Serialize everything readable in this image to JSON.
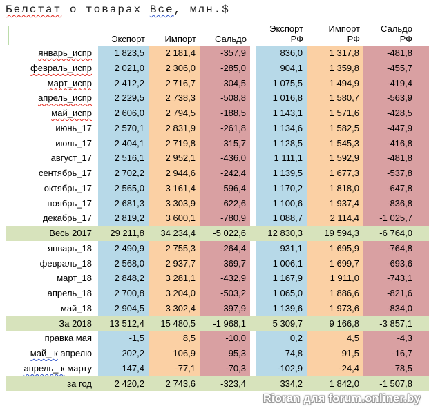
{
  "title": {
    "segments": [
      {
        "text": "Белстат",
        "wavy": "red"
      },
      {
        "text": " о товарах ",
        "wavy": null
      },
      {
        "text": "Все",
        "wavy": "blue"
      },
      {
        "text": ", млн.$",
        "wavy": null
      }
    ]
  },
  "colors": {
    "export_col": "#B7D9E8",
    "import_col": "#FBD0A4",
    "saldo_col": "#D9A0A2",
    "summary_row": "#D7E3BC",
    "wavy_red": "#e2261c",
    "wavy_blue": "#2f54c9",
    "watermark_text": "#ffffff"
  },
  "table": {
    "headers": [
      {
        "line1": "",
        "line2": "Экспорт"
      },
      {
        "line1": "",
        "line2": "Импорт"
      },
      {
        "line1": "",
        "line2": "Сальдо"
      },
      {
        "line1": "Экспорт",
        "line2": "РФ"
      },
      {
        "line1": "Импорт",
        "line2": "РФ"
      },
      {
        "line1": "Сальдо",
        "line2": "РФ"
      }
    ],
    "rows": [
      {
        "type": "month",
        "label_parts": [
          {
            "text": "январь_испр",
            "wavy": "red"
          }
        ],
        "values": [
          "1 823,5",
          "2 181,4",
          "-357,9",
          "836,0",
          "1 317,8",
          "-481,8"
        ]
      },
      {
        "type": "month",
        "label_parts": [
          {
            "text": "февраль_испр",
            "wavy": "red"
          }
        ],
        "values": [
          "2 021,0",
          "2 306,0",
          "-285,0",
          "904,1",
          "1 359,8",
          "-455,7"
        ]
      },
      {
        "type": "month",
        "label_parts": [
          {
            "text": "март_испр",
            "wavy": "red"
          }
        ],
        "values": [
          "2 412,2",
          "2 716,7",
          "-304,5",
          "1 075,5",
          "1 494,9",
          "-419,4"
        ]
      },
      {
        "type": "month",
        "label_parts": [
          {
            "text": "апрель_испр",
            "wavy": "red"
          }
        ],
        "values": [
          "2 229,5",
          "2 738,3",
          "-508,8",
          "1 016,8",
          "1 580,7",
          "-563,9"
        ]
      },
      {
        "type": "month",
        "label_parts": [
          {
            "text": "май_испр",
            "wavy": "red"
          }
        ],
        "values": [
          "2 606,0",
          "2 794,5",
          "-188,5",
          "1 143,1",
          "1 571,6",
          "-428,5"
        ]
      },
      {
        "type": "month",
        "label_parts": [
          {
            "text": "июнь_17",
            "wavy": null
          }
        ],
        "values": [
          "2 570,1",
          "2 831,9",
          "-261,8",
          "1 134,6",
          "1 582,5",
          "-447,9"
        ]
      },
      {
        "type": "month",
        "label_parts": [
          {
            "text": "июль_17",
            "wavy": null
          }
        ],
        "values": [
          "2 404,1",
          "2 719,8",
          "-315,7",
          "1 128,5",
          "1 545,3",
          "-416,8"
        ]
      },
      {
        "type": "month",
        "label_parts": [
          {
            "text": "август_17",
            "wavy": null
          }
        ],
        "values": [
          "2 516,1",
          "2 952,1",
          "-436,0",
          "1 111,1",
          "1 592,9",
          "-481,8"
        ]
      },
      {
        "type": "month",
        "label_parts": [
          {
            "text": "сентябрь_17",
            "wavy": null
          }
        ],
        "values": [
          "2 702,2",
          "2 944,6",
          "-242,4",
          "1 139,5",
          "1 677,3",
          "-537,8"
        ]
      },
      {
        "type": "month",
        "label_parts": [
          {
            "text": "октябрь_17",
            "wavy": null
          }
        ],
        "values": [
          "2 565,0",
          "3 161,4",
          "-596,4",
          "1 170,2",
          "1 818,0",
          "-647,8"
        ]
      },
      {
        "type": "month",
        "label_parts": [
          {
            "text": "ноябрь_17",
            "wavy": null
          }
        ],
        "values": [
          "2 681,3",
          "3 303,9",
          "-622,6",
          "1 100,6",
          "1 937,4",
          "-836,8"
        ]
      },
      {
        "type": "month",
        "label_parts": [
          {
            "text": "декабрь_17",
            "wavy": null
          }
        ],
        "values": [
          "2 819,2",
          "3 600,1",
          "-780,9",
          "1 088,7",
          "2 114,4",
          "-1 025,7"
        ]
      },
      {
        "type": "summary",
        "label_parts": [
          {
            "text": "Весь 2017",
            "wavy": null
          }
        ],
        "values": [
          "29 211,8",
          "34 234,4",
          "-5 022,6",
          "12 830,3",
          "19 594,3",
          "-6 764,0"
        ]
      },
      {
        "type": "month",
        "label_parts": [
          {
            "text": "январь_18",
            "wavy": null
          }
        ],
        "values": [
          "2 490,9",
          "2 755,3",
          "-264,4",
          "931,1",
          "1 695,9",
          "-764,8"
        ]
      },
      {
        "type": "month",
        "label_parts": [
          {
            "text": "февраль_18",
            "wavy": null
          }
        ],
        "values": [
          "2 568,0",
          "2 937,7",
          "-369,7",
          "1 006,1",
          "1 699,7",
          "-693,6"
        ]
      },
      {
        "type": "month",
        "label_parts": [
          {
            "text": "март_18",
            "wavy": null
          }
        ],
        "values": [
          "2 848,2",
          "3 281,1",
          "-432,9",
          "1 167,9",
          "1 911,0",
          "-743,1"
        ]
      },
      {
        "type": "month",
        "label_parts": [
          {
            "text": "апрель_18",
            "wavy": null
          }
        ],
        "values": [
          "2 700,8",
          "3 204,0",
          "-503,2",
          "1 065,0",
          "1 886,6",
          "-821,6"
        ]
      },
      {
        "type": "month",
        "label_parts": [
          {
            "text": "май_18",
            "wavy": null
          }
        ],
        "values": [
          "2 904,5",
          "3 302,4",
          "-397,9",
          "1 139,6",
          "1 973,6",
          "-834,0"
        ]
      },
      {
        "type": "summary",
        "label_parts": [
          {
            "text": "За 2018",
            "wavy": null
          }
        ],
        "values": [
          "13 512,4",
          "15 480,5",
          "-1 968,1",
          "5 309,7",
          "9 166,8",
          "-3 857,1"
        ]
      },
      {
        "type": "month",
        "label_parts": [
          {
            "text": "правка мая",
            "wavy": null
          }
        ],
        "values": [
          "-1,5",
          "8,5",
          "-10,0",
          "0,2",
          "4,5",
          "-4,3"
        ]
      },
      {
        "type": "month",
        "label_parts": [
          {
            "text": "май_ к",
            "wavy": "blue"
          },
          {
            "text": " апрелю",
            "wavy": null
          }
        ],
        "values": [
          "202,2",
          "106,9",
          "95,3",
          "74,8",
          "91,5",
          "-16,7"
        ]
      },
      {
        "type": "month",
        "label_parts": [
          {
            "text": "апрель_ к",
            "wavy": "blue"
          },
          {
            "text": " марту",
            "wavy": null
          }
        ],
        "values": [
          "-147,4",
          "-77,1",
          "-70,3",
          "-102,9",
          "-24,4",
          "-78,5"
        ]
      },
      {
        "type": "summary",
        "label_parts": [
          {
            "text": "за год",
            "wavy": null
          }
        ],
        "values": [
          "2 420,2",
          "2 743,6",
          "-323,4",
          "334,2",
          "1 842,0",
          "-1 507,8"
        ]
      }
    ]
  },
  "watermark": {
    "text": "Rioran для forum.onliner.by"
  }
}
